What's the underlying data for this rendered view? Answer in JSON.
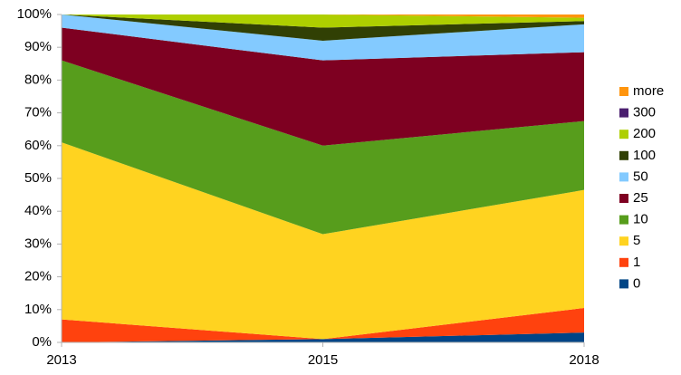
{
  "chart_data": {
    "type": "stacked_area",
    "categories": [
      "2013",
      "2015",
      "2018"
    ],
    "series": [
      {
        "name": "0",
        "color": "#004586",
        "values": [
          0,
          1,
          3
        ]
      },
      {
        "name": "1",
        "color": "#ff420e",
        "values": [
          7,
          0,
          7.5
        ]
      },
      {
        "name": "5",
        "color": "#ffd320",
        "values": [
          54,
          32,
          36
        ]
      },
      {
        "name": "10",
        "color": "#579d1c",
        "values": [
          25,
          27,
          21
        ]
      },
      {
        "name": "25",
        "color": "#7e0021",
        "values": [
          10,
          26,
          21
        ]
      },
      {
        "name": "50",
        "color": "#83caff",
        "values": [
          4,
          6,
          8.5
        ]
      },
      {
        "name": "100",
        "color": "#314004",
        "values": [
          0,
          4,
          1
        ]
      },
      {
        "name": "200",
        "color": "#aecf00",
        "values": [
          0,
          4,
          1
        ]
      },
      {
        "name": "300",
        "color": "#4b1f6f",
        "values": [
          0,
          0,
          0
        ]
      },
      {
        "name": "more",
        "color": "#ff950e",
        "values": [
          0,
          0,
          1
        ]
      }
    ],
    "ylim": [
      0,
      100
    ],
    "yticks": [
      {
        "value": 0,
        "label": "0%"
      },
      {
        "value": 10,
        "label": "10%"
      },
      {
        "value": 20,
        "label": "20%"
      },
      {
        "value": 30,
        "label": "30%"
      },
      {
        "value": 40,
        "label": "40%"
      },
      {
        "value": 50,
        "label": "50%"
      },
      {
        "value": 60,
        "label": "60%"
      },
      {
        "value": 70,
        "label": "70%"
      },
      {
        "value": 80,
        "label": "80%"
      },
      {
        "value": 90,
        "label": "90%"
      },
      {
        "value": 100,
        "label": "100%"
      }
    ],
    "grid": false,
    "legend": "right"
  }
}
